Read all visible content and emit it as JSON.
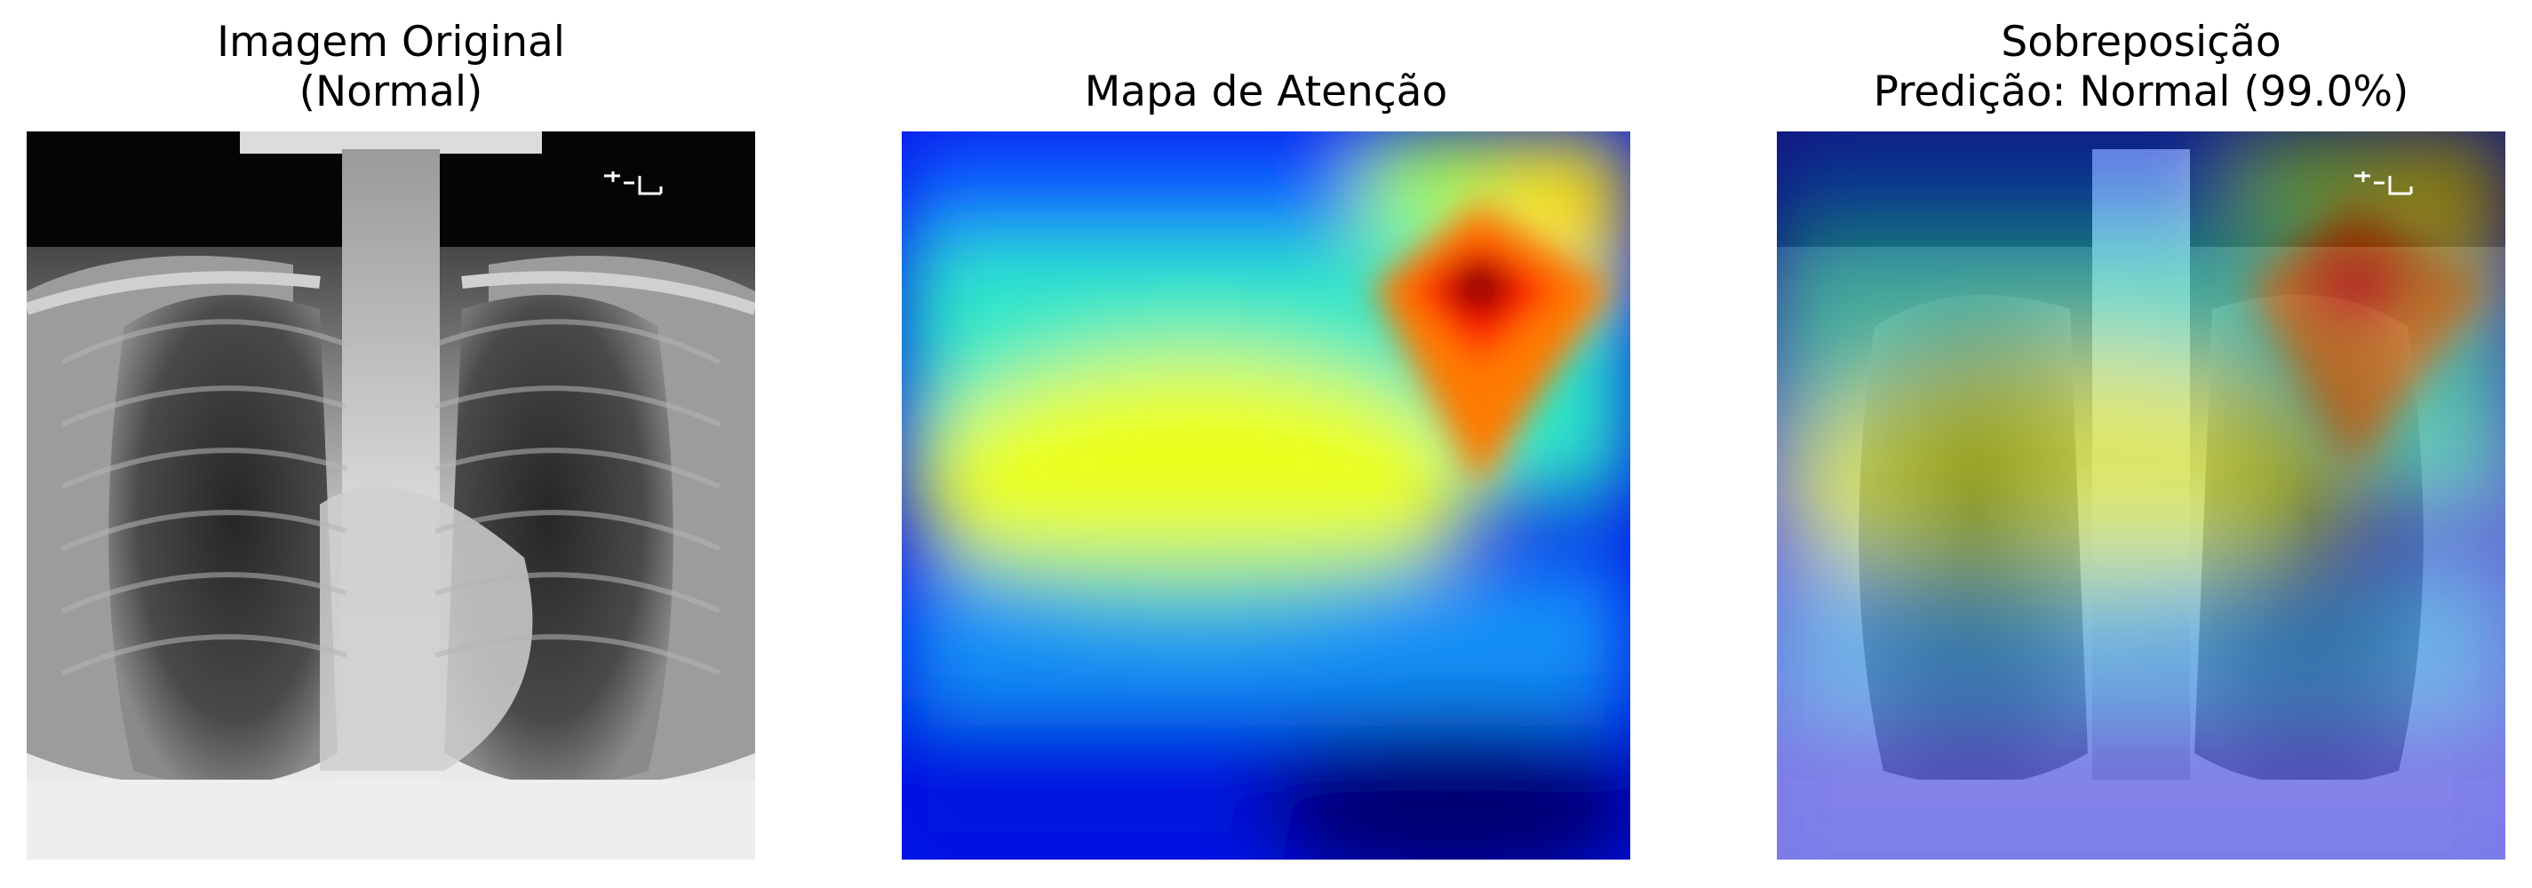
{
  "panels": [
    {
      "title_line1": "Imagem Original",
      "title_line2": "(Normal)"
    },
    {
      "title_line1": "Mapa de Atenção"
    },
    {
      "title_line1": "Sobreposição",
      "title_line2": "Predição: Normal (99.0%)"
    }
  ],
  "prediction": {
    "label": "Normal",
    "confidence_percent": 99.0
  },
  "image_content": {
    "original": "chest-xray",
    "heatmap_colormap": "jet",
    "overlay": "chest-xray-with-heatmap"
  }
}
